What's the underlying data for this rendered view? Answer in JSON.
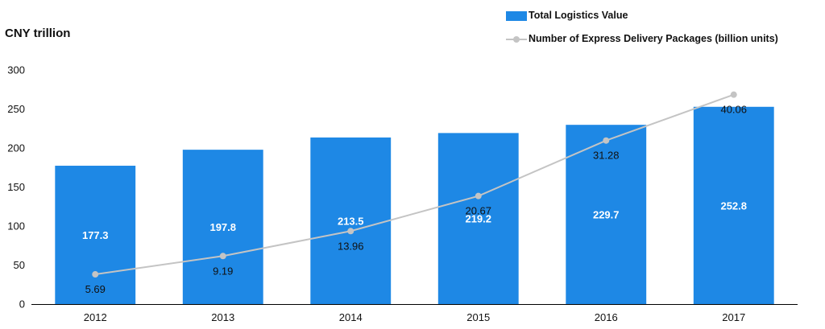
{
  "unit_label": "CNY trillion",
  "colors": {
    "bar": "#1e88e5",
    "line": "#c4c4c4",
    "axis": "#000000",
    "text": "#111111"
  },
  "chart_data": {
    "type": "bar",
    "categories": [
      "2012",
      "2013",
      "2014",
      "2015",
      "2016",
      "2017"
    ],
    "ylim": [
      0,
      300
    ],
    "yticks": [
      "0",
      "50",
      "100",
      "150",
      "200",
      "250",
      "300"
    ],
    "grid": false,
    "legend_position": "top-right",
    "series": [
      {
        "name": "Total Logistics Value",
        "type": "bar",
        "values": [
          177.3,
          197.8,
          213.5,
          219.2,
          229.7,
          252.8
        ],
        "labels": [
          "177.3",
          "197.8",
          "213.5",
          "219.2",
          "229.7",
          "252.8"
        ]
      },
      {
        "name": "Number of Express Delivery Packages (billion units)",
        "type": "line",
        "values": [
          5.69,
          9.19,
          13.96,
          20.67,
          31.28,
          40.06
        ],
        "labels": [
          "5.69",
          "9.19",
          "13.96",
          "20.67",
          "31.28",
          "40.06"
        ]
      }
    ]
  }
}
